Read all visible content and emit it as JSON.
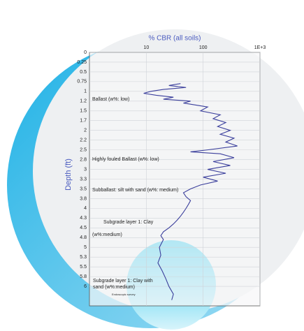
{
  "chart_data": {
    "type": "line",
    "title": "% CBR (all soils)",
    "y_label": "Depth (ft)",
    "x_scale": "log",
    "y_inverted": true,
    "grid": true,
    "xlim": [
      1,
      1000
    ],
    "xticks": [
      10,
      100,
      {
        "value": 1000,
        "label": "1E+3"
      }
    ],
    "ylim": [
      0,
      6.5
    ],
    "yticks": [
      0,
      0.25,
      0.5,
      0.75,
      1,
      {
        "value": 1.25,
        "label": "1.2"
      },
      1.5,
      {
        "value": 1.75,
        "label": "1.7"
      },
      2,
      {
        "value": 2.25,
        "label": "2.2"
      },
      2.5,
      {
        "value": 2.75,
        "label": "2.8"
      },
      3,
      {
        "value": 3.25,
        "label": "3.3"
      },
      3.5,
      {
        "value": 3.75,
        "label": "3.8"
      },
      4,
      {
        "value": 4.25,
        "label": "4.3"
      },
      4.5,
      {
        "value": 4.75,
        "label": "4.8"
      },
      5,
      {
        "value": 5.25,
        "label": "5.3"
      },
      5.5,
      {
        "value": 5.75,
        "label": "5.8"
      },
      6
    ],
    "depth": [
      0.8,
      0.85,
      0.9,
      0.95,
      1.0,
      1.05,
      1.1,
      1.15,
      1.2,
      1.25,
      1.3,
      1.4,
      1.5,
      1.6,
      1.7,
      1.8,
      1.9,
      2.0,
      2.1,
      2.2,
      2.3,
      2.4,
      2.5,
      2.55,
      2.6,
      2.7,
      2.8,
      2.9,
      3.0,
      3.1,
      3.2,
      3.3,
      3.4,
      3.5,
      3.6,
      3.7,
      3.8,
      3.9,
      4.0,
      4.1,
      4.2,
      4.3,
      4.4,
      4.5,
      4.6,
      4.7,
      4.8,
      5.0,
      5.2,
      5.4,
      5.6,
      5.8,
      6.0,
      6.2,
      6.35
    ],
    "series": [
      {
        "color": "#3b3f9c",
        "values": [
          40,
          25,
          50,
          20,
          12,
          9,
          15,
          30,
          20,
          60,
          45,
          120,
          90,
          200,
          150,
          250,
          180,
          300,
          200,
          350,
          250,
          400,
          120,
          60,
          200,
          350,
          150,
          300,
          120,
          250,
          100,
          180,
          90,
          60,
          45,
          50,
          60,
          55,
          50,
          45,
          40,
          35,
          30,
          25,
          20,
          18,
          20,
          17,
          18,
          16,
          19,
          22,
          25,
          30,
          28
        ]
      }
    ],
    "annotations": [
      "Ballast (w%: low)",
      "Highly fouled  Ballast (w%: low)",
      "Subballast: silt with sand (w%: medium)",
      "Subgrade  layer 1: Clay",
      "(w%:medium)",
      "Subgrade  layer 1: Clay with",
      "sand (w%:medium)",
      "Endoscopic survey"
    ]
  }
}
